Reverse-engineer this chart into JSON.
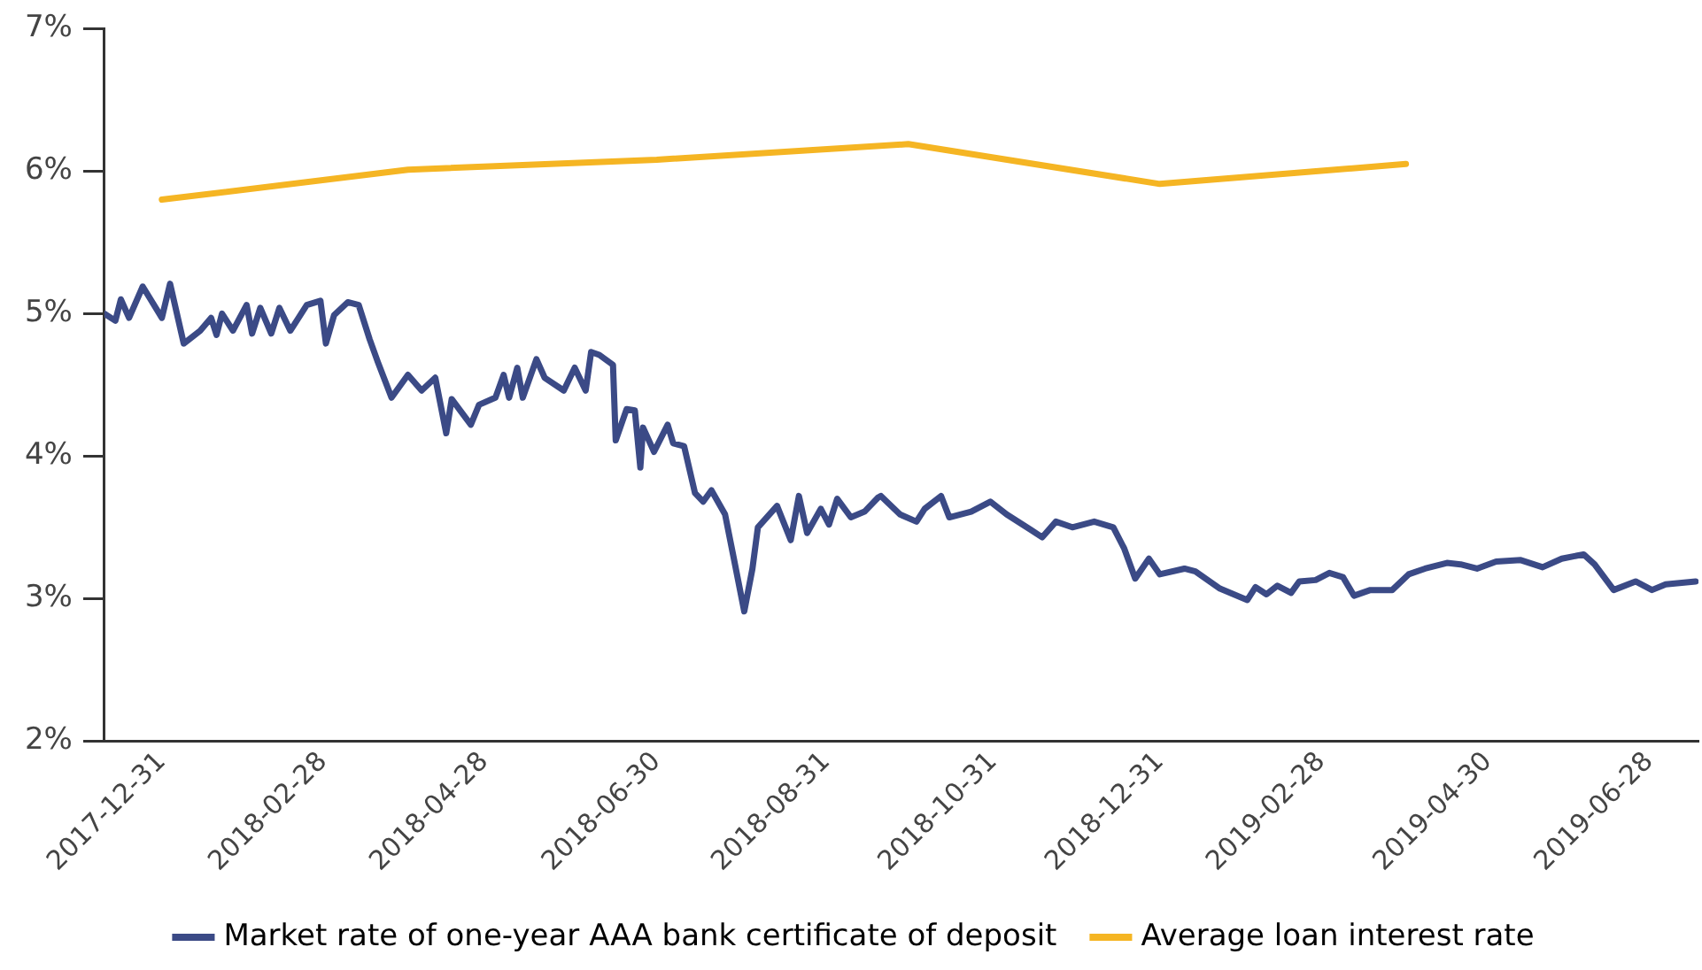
{
  "chart_data": {
    "type": "line",
    "ylim": [
      2,
      7
    ],
    "yticks": [
      {
        "value": 2,
        "label": "2%"
      },
      {
        "value": 3,
        "label": "3%"
      },
      {
        "value": 4,
        "label": "4%"
      },
      {
        "value": 5,
        "label": "5%"
      },
      {
        "value": 6,
        "label": "6%"
      },
      {
        "value": 7,
        "label": "7%"
      }
    ],
    "xlim": [
      "2017-12-10",
      "2019-07-16"
    ],
    "xticks": [
      "2017-12-31",
      "2018-02-28",
      "2018-04-28",
      "2018-06-30",
      "2018-08-31",
      "2018-10-31",
      "2018-12-31",
      "2019-02-28",
      "2019-04-30",
      "2019-06-28"
    ],
    "grid": false,
    "legend": "bottom",
    "marker": "none",
    "line_style": "solid",
    "series": [
      {
        "name": "Market rate of one-year AAA bank certificate of deposit",
        "color": "#3b4a86",
        "x": [
          "2017-12-10",
          "2017-12-14",
          "2017-12-16",
          "2017-12-19",
          "2017-12-24",
          "2017-12-31",
          "2018-01-03",
          "2018-01-08",
          "2018-01-14",
          "2018-01-18",
          "2018-01-20",
          "2018-01-22",
          "2018-01-26",
          "2018-01-31",
          "2018-02-02",
          "2018-02-05",
          "2018-02-09",
          "2018-02-12",
          "2018-02-16",
          "2018-02-22",
          "2018-02-27",
          "2018-03-01",
          "2018-03-04",
          "2018-03-09",
          "2018-03-13",
          "2018-03-17",
          "2018-03-20",
          "2018-03-25",
          "2018-03-31",
          "2018-04-05",
          "2018-04-10",
          "2018-04-14",
          "2018-04-16",
          "2018-04-23",
          "2018-04-26",
          "2018-05-02",
          "2018-05-05",
          "2018-05-07",
          "2018-05-10",
          "2018-05-12",
          "2018-05-17",
          "2018-05-20",
          "2018-05-27",
          "2018-05-31",
          "2018-06-04",
          "2018-06-06",
          "2018-06-09",
          "2018-06-14",
          "2018-06-15",
          "2018-06-19",
          "2018-06-22",
          "2018-06-24",
          "2018-06-25",
          "2018-06-29",
          "2018-07-04",
          "2018-07-06",
          "2018-07-10",
          "2018-07-14",
          "2018-07-17",
          "2018-07-20",
          "2018-07-25",
          "2018-07-28",
          "2018-08-01",
          "2018-08-04",
          "2018-08-06",
          "2018-08-13",
          "2018-08-18",
          "2018-08-21",
          "2018-08-24",
          "2018-08-29",
          "2018-09-01",
          "2018-09-04",
          "2018-09-09",
          "2018-09-14",
          "2018-09-19",
          "2018-09-20",
          "2018-09-27",
          "2018-10-03",
          "2018-10-06",
          "2018-10-12",
          "2018-10-15",
          "2018-10-23",
          "2018-10-30",
          "2018-11-05",
          "2018-11-14",
          "2018-11-18",
          "2018-11-23",
          "2018-11-29",
          "2018-12-07",
          "2018-12-14",
          "2018-12-18",
          "2018-12-22",
          "2018-12-27",
          "2018-12-31",
          "2019-01-09",
          "2019-01-13",
          "2019-01-22",
          "2019-02-01",
          "2019-02-04",
          "2019-02-08",
          "2019-02-12",
          "2019-02-17",
          "2019-02-20",
          "2019-02-26",
          "2019-03-03",
          "2019-03-08",
          "2019-03-12",
          "2019-03-18",
          "2019-03-26",
          "2019-04-01",
          "2019-04-07",
          "2019-04-15",
          "2019-04-20",
          "2019-04-26",
          "2019-05-03",
          "2019-05-12",
          "2019-05-20",
          "2019-05-27",
          "2019-06-04",
          "2019-06-08",
          "2019-06-15",
          "2019-06-23",
          "2019-06-29",
          "2019-07-04",
          "2019-07-15"
        ],
        "values": [
          5.0,
          4.95,
          5.1,
          4.97,
          5.19,
          4.97,
          5.21,
          4.79,
          4.88,
          4.97,
          4.85,
          5.0,
          4.88,
          5.06,
          4.86,
          5.04,
          4.86,
          5.04,
          4.88,
          5.06,
          5.09,
          4.79,
          4.99,
          5.08,
          5.06,
          4.82,
          4.66,
          4.41,
          4.57,
          4.46,
          4.55,
          4.16,
          4.4,
          4.22,
          4.36,
          4.41,
          4.57,
          4.41,
          4.62,
          4.41,
          4.68,
          4.55,
          4.46,
          4.62,
          4.46,
          4.73,
          4.71,
          4.64,
          4.11,
          4.33,
          4.32,
          3.92,
          4.2,
          4.03,
          4.22,
          4.09,
          4.07,
          3.74,
          3.68,
          3.76,
          3.59,
          3.3,
          2.91,
          3.21,
          3.5,
          3.65,
          3.41,
          3.72,
          3.46,
          3.63,
          3.52,
          3.7,
          3.57,
          3.61,
          3.71,
          3.72,
          3.59,
          3.54,
          3.63,
          3.72,
          3.57,
          3.61,
          3.68,
          3.59,
          3.48,
          3.43,
          3.54,
          3.5,
          3.54,
          3.5,
          3.35,
          3.14,
          3.28,
          3.17,
          3.21,
          3.19,
          3.07,
          2.99,
          3.08,
          3.03,
          3.09,
          3.04,
          3.12,
          3.13,
          3.18,
          3.15,
          3.02,
          3.06,
          3.06,
          3.17,
          3.21,
          3.25,
          3.24,
          3.21,
          3.26,
          3.27,
          3.22,
          3.28,
          3.31,
          3.24,
          3.06,
          3.12,
          3.06,
          3.1,
          3.12
        ]
      },
      {
        "name": "Average loan interest rate",
        "color": "#f5b523",
        "x": [
          "2017-12-31",
          "2018-03-31",
          "2018-06-30",
          "2018-09-30",
          "2018-12-31",
          "2019-03-31"
        ],
        "values": [
          5.8,
          6.01,
          6.08,
          6.19,
          5.91,
          6.05
        ]
      }
    ]
  }
}
